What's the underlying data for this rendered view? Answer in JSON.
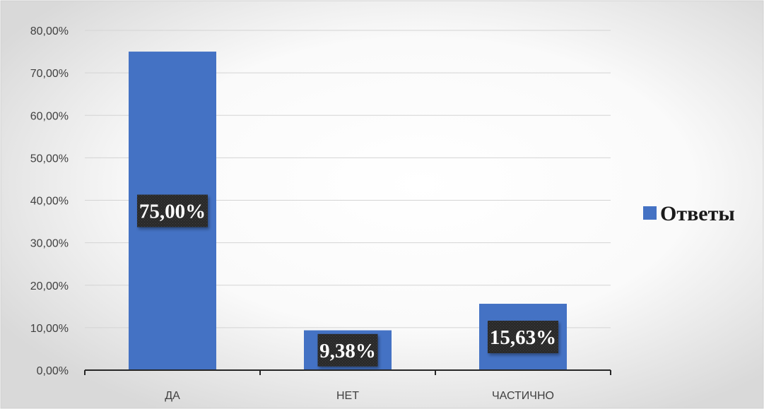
{
  "chart_data": {
    "type": "bar",
    "categories": [
      "ДА",
      "НЕТ",
      "ЧАСТИЧНО"
    ],
    "series": [
      {
        "name": "Ответы",
        "values": [
          75.0,
          9.38,
          15.63
        ],
        "color": "#4472C4"
      }
    ],
    "data_labels": [
      "75,00%",
      "9,38%",
      "15,63%"
    ],
    "y_ticks": [
      "0,00%",
      "10,00%",
      "20,00%",
      "30,00%",
      "40,00%",
      "50,00%",
      "60,00%",
      "70,00%",
      "80,00%"
    ],
    "ylim": [
      0,
      80
    ],
    "y_step": 10,
    "grid": true,
    "legend_position": "right",
    "title": "",
    "xlabel": "",
    "ylabel": ""
  }
}
